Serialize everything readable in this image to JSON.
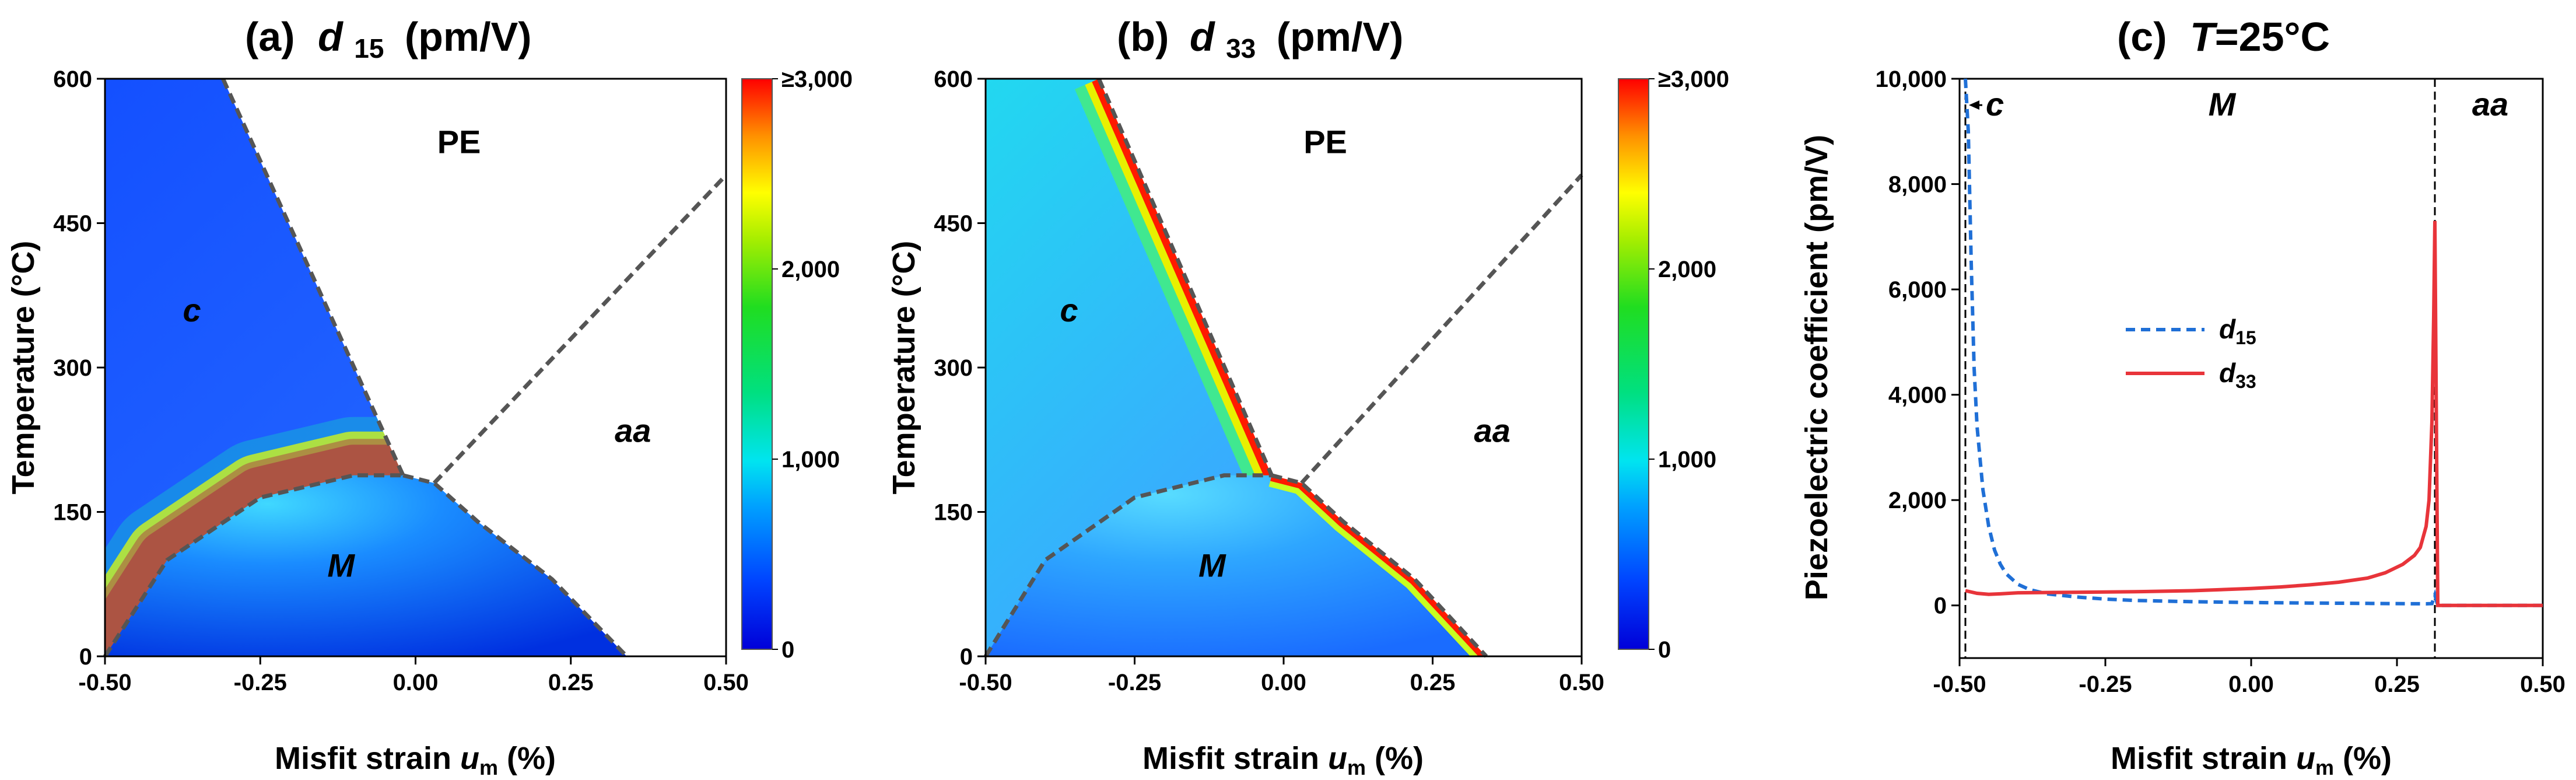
{
  "chart_data": [
    {
      "type": "heatmap",
      "id": "a",
      "title_prefix": "(a)",
      "title_symbol": "d",
      "title_sub": "15",
      "title_suffix": "(pm/V)",
      "xlabel_main": "Misfit strain ",
      "xlabel_sym": "u",
      "xlabel_sub": "m",
      "xlabel_unit": " (%)",
      "ylabel": "Temperature (°C)",
      "xlim": [
        -0.5,
        0.5
      ],
      "ylim": [
        0,
        600
      ],
      "xticks": [
        "-0.50",
        "-0.25",
        "0.00",
        "0.25",
        "0.50"
      ],
      "xtick_values": [
        -0.5,
        -0.25,
        0,
        0.25,
        0.5
      ],
      "yticks": [
        "0",
        "150",
        "300",
        "450",
        "600"
      ],
      "ytick_values": [
        0,
        150,
        300,
        450,
        600
      ],
      "colorbar_ticks": [
        "0",
        "1,000",
        "2,000",
        "≥3,000"
      ],
      "colorbar_values": [
        0,
        1000,
        2000,
        3000
      ],
      "regions": [
        {
          "label": "PE",
          "x": 0.07,
          "y": 535
        },
        {
          "label": "c",
          "x": -0.36,
          "y": 360
        },
        {
          "label": "aa",
          "x": 0.35,
          "y": 235
        },
        {
          "label": "M",
          "x": -0.12,
          "y": 95
        }
      ],
      "boundaries": {
        "c_PE": [
          [
            -0.31,
            600
          ],
          [
            -0.02,
            188
          ]
        ],
        "M_PE": [
          [
            -0.02,
            188
          ],
          [
            0.03,
            180
          ],
          [
            0.1,
            140
          ],
          [
            0.22,
            80
          ],
          [
            0.34,
            0
          ]
        ],
        "aa_PE": [
          [
            0.03,
            180
          ],
          [
            0.5,
            500
          ]
        ],
        "c_M": [
          [
            -0.5,
            0
          ],
          [
            -0.4,
            100
          ],
          [
            -0.25,
            165
          ],
          [
            -0.1,
            188
          ],
          [
            -0.02,
            188
          ]
        ]
      }
    },
    {
      "type": "heatmap",
      "id": "b",
      "title_prefix": "(b)",
      "title_symbol": "d",
      "title_sub": "33",
      "title_suffix": "(pm/V)",
      "xlabel_main": "Misfit strain ",
      "xlabel_sym": "u",
      "xlabel_sub": "m",
      "xlabel_unit": " (%)",
      "ylabel": "Temperature (°C)",
      "xlim": [
        -0.5,
        0.5
      ],
      "ylim": [
        0,
        600
      ],
      "xticks": [
        "-0.50",
        "-0.25",
        "0.00",
        "0.25",
        "0.50"
      ],
      "xtick_values": [
        -0.5,
        -0.25,
        0,
        0.25,
        0.5
      ],
      "yticks": [
        "0",
        "150",
        "300",
        "450",
        "600"
      ],
      "ytick_values": [
        0,
        150,
        300,
        450,
        600
      ],
      "colorbar_ticks": [
        "0",
        "1,000",
        "2,000",
        "≥3,000"
      ],
      "colorbar_values": [
        0,
        1000,
        2000,
        3000
      ],
      "regions": [
        {
          "label": "PE",
          "x": 0.07,
          "y": 535
        },
        {
          "label": "c",
          "x": -0.36,
          "y": 360
        },
        {
          "label": "aa",
          "x": 0.35,
          "y": 235
        },
        {
          "label": "M",
          "x": -0.12,
          "y": 95
        }
      ],
      "boundaries": {
        "c_PE": [
          [
            -0.31,
            600
          ],
          [
            -0.02,
            188
          ]
        ],
        "M_PE": [
          [
            -0.02,
            188
          ],
          [
            0.03,
            180
          ],
          [
            0.1,
            140
          ],
          [
            0.22,
            80
          ],
          [
            0.34,
            0
          ]
        ],
        "aa_PE": [
          [
            0.03,
            180
          ],
          [
            0.5,
            500
          ]
        ],
        "c_M": [
          [
            -0.5,
            0
          ],
          [
            -0.4,
            100
          ],
          [
            -0.25,
            165
          ],
          [
            -0.1,
            188
          ],
          [
            -0.02,
            188
          ]
        ]
      }
    },
    {
      "type": "line",
      "id": "c",
      "title_prefix": "(c)",
      "title_symbol": "T",
      "title_rest": "=25°C",
      "xlabel_main": "Misfit strain ",
      "xlabel_sym": "u",
      "xlabel_sub": "m",
      "xlabel_unit": " (%)",
      "ylabel": "Piezoelectric coefficient (pm/V)",
      "xlim": [
        -0.5,
        0.5
      ],
      "ylim": [
        -1000,
        10000
      ],
      "xticks": [
        "-0.50",
        "-0.25",
        "0.00",
        "0.25",
        "0.50"
      ],
      "xtick_values": [
        -0.5,
        -0.25,
        0,
        0.25,
        0.5
      ],
      "yticks": [
        "0",
        "2,000",
        "4,000",
        "6,000",
        "8,000",
        "10,000"
      ],
      "ytick_values": [
        0,
        2000,
        4000,
        6000,
        8000,
        10000
      ],
      "phase_boundaries": [
        -0.49,
        0.315
      ],
      "regions": [
        {
          "label": "c",
          "x": -0.455,
          "y": 9500
        },
        {
          "label": "M",
          "x": -0.05,
          "y": 9500
        },
        {
          "label": "aa",
          "x": 0.41,
          "y": 9500
        }
      ],
      "legend": [
        {
          "symbol": "d",
          "sub": "15",
          "color": "#1f6fd6",
          "dash": true
        },
        {
          "symbol": "d",
          "sub": "33",
          "color": "#e8343a",
          "dash": false
        }
      ],
      "series": [
        {
          "name": "d15",
          "color": "#1f6fd6",
          "x": [
            -0.49,
            -0.485,
            -0.48,
            -0.475,
            -0.47,
            -0.46,
            -0.45,
            -0.44,
            -0.43,
            -0.42,
            -0.4,
            -0.38,
            -0.35,
            -0.3,
            -0.25,
            -0.2,
            -0.1,
            0.0,
            0.1,
            0.2,
            0.3,
            0.31,
            0.315,
            0.32,
            0.4,
            0.5
          ],
          "y": [
            10000,
            9000,
            6500,
            4500,
            3400,
            2200,
            1500,
            1050,
            780,
            600,
            400,
            300,
            220,
            160,
            120,
            95,
            70,
            55,
            45,
            38,
            30,
            35,
            200,
            0,
            0,
            0
          ]
        },
        {
          "name": "d33",
          "color": "#e8343a",
          "x": [
            -0.49,
            -0.47,
            -0.45,
            -0.43,
            -0.4,
            -0.35,
            -0.3,
            -0.2,
            -0.1,
            0.0,
            0.05,
            0.1,
            0.15,
            0.2,
            0.23,
            0.26,
            0.28,
            0.29,
            0.3,
            0.305,
            0.31,
            0.313,
            0.315,
            0.32,
            0.4,
            0.5
          ],
          "y": [
            280,
            230,
            210,
            220,
            240,
            245,
            250,
            260,
            280,
            320,
            350,
            390,
            440,
            520,
            620,
            780,
            950,
            1100,
            1500,
            2000,
            3500,
            5500,
            7300,
            0,
            0,
            0
          ]
        }
      ]
    }
  ]
}
